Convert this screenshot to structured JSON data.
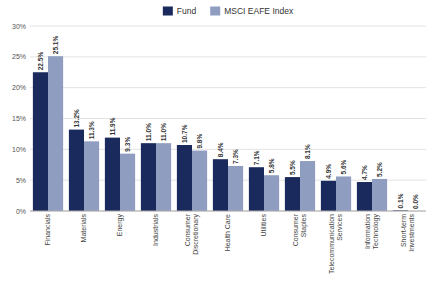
{
  "chart_data": {
    "type": "bar",
    "categories": [
      "Financials",
      "Materials",
      "Energy",
      "Industrials",
      "Consumer\nDiscretionary",
      "Health Care",
      "Utilities",
      "Consumer\nStaples",
      "Telecommunication\nServices",
      "Information\nTechnology",
      "Short-term\nInvestments"
    ],
    "series": [
      {
        "name": "Fund",
        "color": "#1b2a5c",
        "values": [
          22.5,
          13.2,
          11.9,
          11.0,
          10.7,
          8.4,
          7.1,
          5.5,
          4.9,
          4.7,
          0.1
        ],
        "value_labels": [
          "22.5%",
          "13.2%",
          "11.9%",
          "11.0%",
          "10.7%",
          "8.4%",
          "7.1%",
          "5.5%",
          "4.9%",
          "4.7%",
          "0.1%"
        ]
      },
      {
        "name": "MSCI EAFE Index",
        "color": "#8e9dc0",
        "values": [
          25.1,
          11.3,
          9.3,
          11.0,
          9.8,
          7.3,
          5.8,
          8.1,
          5.6,
          5.2,
          0.0
        ],
        "value_labels": [
          "25.1%",
          "11.3%",
          "9.3%",
          "11.0%",
          "9.8%",
          "7.3%",
          "5.8%",
          "8.1%",
          "5.6%",
          "5.2%",
          "0.0%"
        ]
      }
    ],
    "ylim": [
      0,
      30
    ],
    "yticks": [
      {
        "value": 0,
        "label": "0%"
      },
      {
        "value": 5,
        "label": "5%"
      },
      {
        "value": 10,
        "label": "10%"
      },
      {
        "value": 15,
        "label": "15%"
      },
      {
        "value": 20,
        "label": "20%"
      },
      {
        "value": 25,
        "label": "25%"
      },
      {
        "value": 30,
        "label": "30%"
      }
    ],
    "grid": true,
    "legend": "top",
    "data_labels": true
  }
}
